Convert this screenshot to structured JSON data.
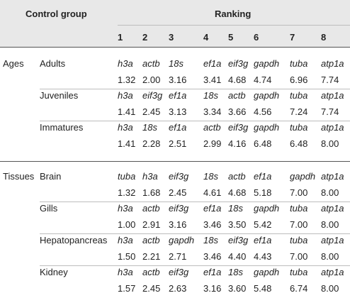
{
  "header": {
    "control_group": "Control group",
    "ranking": "Ranking",
    "ranks": [
      "1",
      "2",
      "3",
      "4",
      "5",
      "6",
      "7",
      "8"
    ]
  },
  "groups": [
    {
      "category": "Ages",
      "rows": [
        {
          "label": "Adults",
          "genes": [
            "h3a",
            "actb",
            "18s",
            "ef1a",
            "eif3g",
            "gapdh",
            "tuba",
            "atp1a"
          ],
          "values": [
            "1.32",
            "2.00",
            "3.16",
            "3.41",
            "4.68",
            "4.74",
            "6.96",
            "7.74"
          ]
        },
        {
          "label": "Juveniles",
          "genes": [
            "h3a",
            "eif3g",
            "ef1a",
            "18s",
            "actb",
            "gapdh",
            "tuba",
            "atp1a"
          ],
          "values": [
            "1.41",
            "2.45",
            "3.13",
            "3.34",
            "3.66",
            "4.56",
            "7.24",
            "7.74"
          ]
        },
        {
          "label": "Immatures",
          "genes": [
            "h3a",
            "18s",
            "ef1a",
            "actb",
            "eif3g",
            "gapdh",
            "tuba",
            "atp1a"
          ],
          "values": [
            "1.41",
            "2.28",
            "2.51",
            "2.99",
            "4.16",
            "6.48",
            "6.48",
            "8.00"
          ]
        }
      ]
    },
    {
      "category": "Tissues",
      "rows": [
        {
          "label": "Brain",
          "genes": [
            "tuba",
            "h3a",
            "eif3g",
            "18s",
            "actb",
            "ef1a",
            "gapdh",
            "atp1a"
          ],
          "values": [
            "1.32",
            "1.68",
            "2.45",
            "4.61",
            "4.68",
            "5.18",
            "7.00",
            "8.00"
          ]
        },
        {
          "label": "Gills",
          "genes": [
            "h3a",
            "actb",
            "eif3g",
            "ef1a",
            "18s",
            "gapdh",
            "tuba",
            "atp1a"
          ],
          "values": [
            "1.00",
            "2.91",
            "3.16",
            "3.46",
            "3.50",
            "5.42",
            "7.00",
            "8.00"
          ]
        },
        {
          "label": "Hepatopancreas",
          "genes": [
            "h3a",
            "actb",
            "gapdh",
            "18s",
            "eif3g",
            "ef1a",
            "tuba",
            "atp1a"
          ],
          "values": [
            "1.50",
            "2.21",
            "2.71",
            "3.46",
            "4.40",
            "4.43",
            "7.00",
            "8.00"
          ]
        },
        {
          "label": "Kidney",
          "genes": [
            "h3a",
            "actb",
            "eif3g",
            "ef1a",
            "18s",
            "gapdh",
            "tuba",
            "atp1a"
          ],
          "values": [
            "1.57",
            "2.45",
            "2.63",
            "3.16",
            "3.60",
            "5.48",
            "6.74",
            "8.00"
          ]
        }
      ]
    }
  ]
}
